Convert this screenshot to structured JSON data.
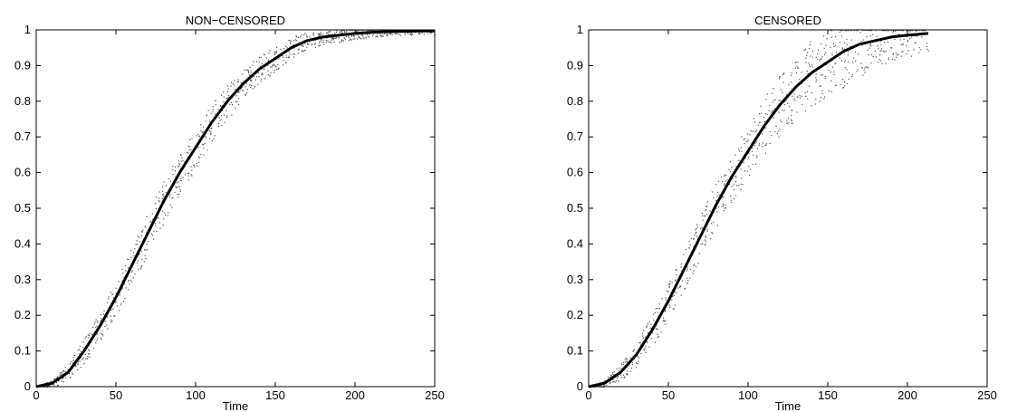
{
  "chart_data": [
    {
      "type": "line",
      "title": "NON−CENSORED",
      "xlabel": "Time",
      "ylabel": "",
      "xlim": [
        0,
        250
      ],
      "ylim": [
        0,
        1
      ],
      "x_ticks": [
        0,
        50,
        100,
        150,
        200,
        250
      ],
      "y_ticks": [
        0,
        0.1,
        0.2,
        0.3,
        0.4,
        0.5,
        0.6,
        0.7,
        0.8,
        0.9,
        1
      ],
      "grid": false,
      "legend": "none",
      "series": [
        {
          "style": "solid-thick",
          "color": "#000000",
          "x": [
            0,
            10,
            20,
            30,
            40,
            50,
            60,
            70,
            80,
            90,
            100,
            110,
            120,
            130,
            140,
            150,
            160,
            170,
            180,
            190,
            200,
            210,
            220,
            230,
            240,
            250
          ],
          "y": [
            0,
            0.01,
            0.04,
            0.1,
            0.17,
            0.25,
            0.34,
            0.43,
            0.52,
            0.6,
            0.67,
            0.74,
            0.8,
            0.85,
            0.89,
            0.92,
            0.95,
            0.97,
            0.98,
            0.985,
            0.99,
            0.993,
            0.995,
            0.996,
            0.997,
            0.997
          ]
        },
        {
          "style": "dotted-band",
          "color": "#000000",
          "band_halfwidth": [
            0,
            0.01,
            0.025,
            0.035,
            0.045,
            0.05,
            0.055,
            0.058,
            0.06,
            0.06,
            0.058,
            0.055,
            0.05,
            0.045,
            0.04,
            0.035,
            0.03,
            0.025,
            0.02,
            0.018,
            0.015,
            0.013,
            0.012,
            0.011,
            0.01,
            0.01
          ]
        }
      ]
    },
    {
      "type": "line",
      "title": "CENSORED",
      "xlabel": "Time",
      "ylabel": "",
      "xlim": [
        0,
        250
      ],
      "ylim": [
        0,
        1
      ],
      "x_ticks": [
        0,
        50,
        100,
        150,
        200,
        250
      ],
      "y_ticks": [
        0,
        0.1,
        0.2,
        0.3,
        0.4,
        0.5,
        0.6,
        0.7,
        0.8,
        0.9,
        1
      ],
      "grid": false,
      "legend": "none",
      "series": [
        {
          "style": "solid-thick",
          "color": "#000000",
          "x": [
            0,
            10,
            20,
            30,
            40,
            50,
            60,
            70,
            80,
            90,
            100,
            110,
            120,
            130,
            140,
            150,
            160,
            170,
            180,
            190,
            200,
            213
          ],
          "y": [
            0,
            0.01,
            0.04,
            0.09,
            0.16,
            0.24,
            0.33,
            0.42,
            0.51,
            0.59,
            0.66,
            0.73,
            0.79,
            0.84,
            0.88,
            0.91,
            0.94,
            0.96,
            0.97,
            0.98,
            0.985,
            0.99
          ]
        },
        {
          "style": "dotted-band",
          "color": "#000000",
          "band_halfwidth": [
            0,
            0.01,
            0.025,
            0.035,
            0.045,
            0.05,
            0.055,
            0.06,
            0.065,
            0.07,
            0.075,
            0.08,
            0.085,
            0.09,
            0.095,
            0.1,
            0.1,
            0.09,
            0.08,
            0.07,
            0.06,
            0.05
          ]
        }
      ]
    }
  ]
}
